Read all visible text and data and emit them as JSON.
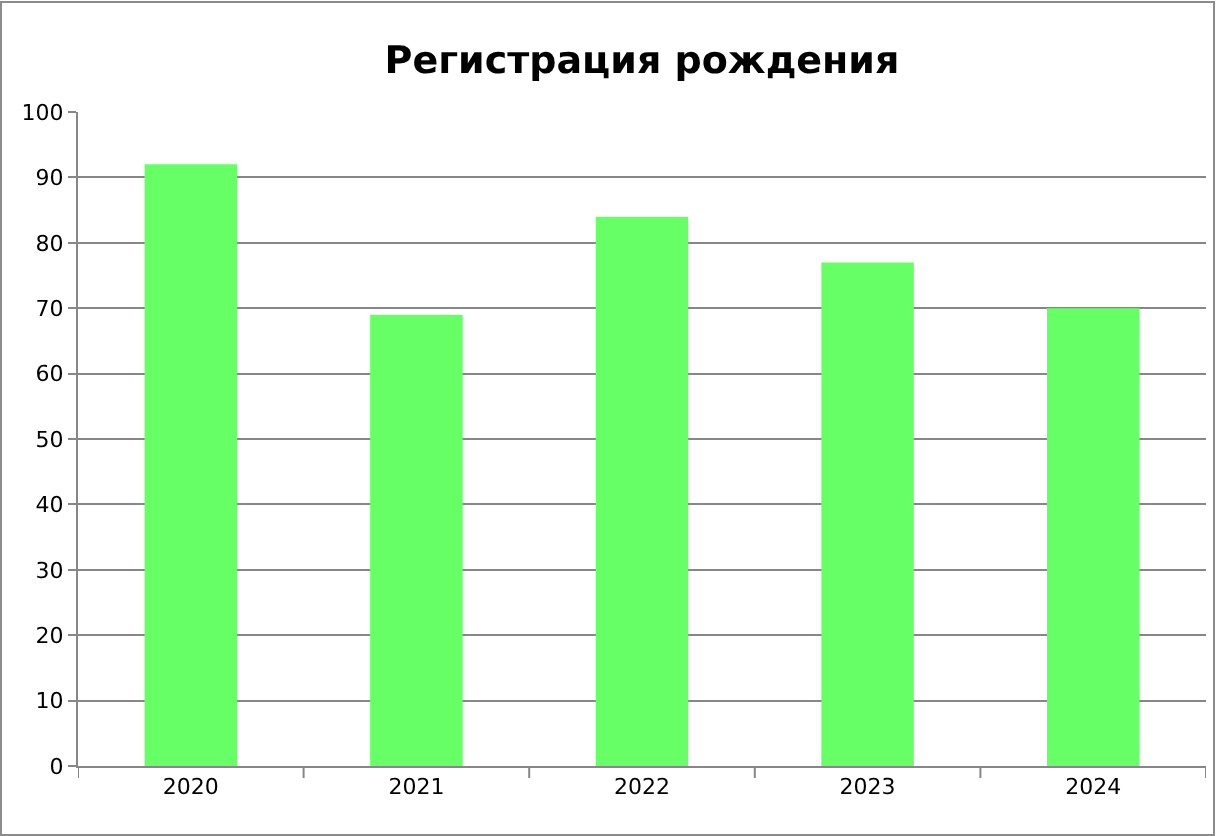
{
  "chart_data": {
    "type": "bar",
    "title": "Регистрация рождения",
    "categories": [
      "2020",
      "2021",
      "2022",
      "2023",
      "2024"
    ],
    "values": [
      92,
      69,
      84,
      77,
      70
    ],
    "color": "#66ff66",
    "ylim": [
      0,
      100
    ],
    "yticks": [
      0,
      10,
      20,
      30,
      40,
      50,
      60,
      70,
      80,
      90,
      100
    ],
    "grid": "y"
  }
}
